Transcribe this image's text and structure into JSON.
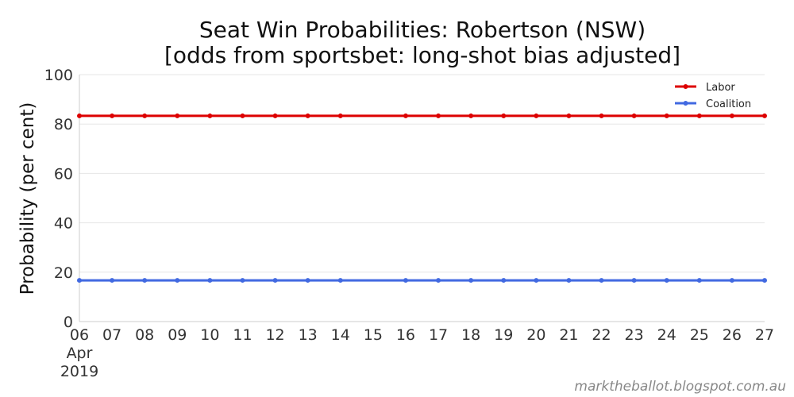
{
  "chart_data": {
    "type": "line",
    "title_line1": "Seat Win Probabilities: Robertson (NSW)",
    "title_line2": "[odds from sportsbet: long-shot bias adjusted]",
    "xlabel": "",
    "ylabel": "Probability (per cent)",
    "x": [
      "2019-04-06",
      "2019-04-07",
      "2019-04-08",
      "2019-04-09",
      "2019-04-10",
      "2019-04-11",
      "2019-04-12",
      "2019-04-13",
      "2019-04-14",
      "2019-04-16",
      "2019-04-17",
      "2019-04-18",
      "2019-04-19",
      "2019-04-20",
      "2019-04-21",
      "2019-04-22",
      "2019-04-23",
      "2019-04-24",
      "2019-04-25",
      "2019-04-26",
      "2019-04-27"
    ],
    "xlim": [
      "2019-04-06",
      "2019-04-27"
    ],
    "x_ticks": [
      "06",
      "07",
      "08",
      "09",
      "10",
      "11",
      "12",
      "13",
      "14",
      "15",
      "16",
      "17",
      "18",
      "19",
      "20",
      "21",
      "22",
      "23",
      "24",
      "25",
      "26",
      "27"
    ],
    "x_first_tick_extra": [
      "Apr",
      "2019"
    ],
    "ylim": [
      0,
      100
    ],
    "y_ticks": [
      0,
      20,
      40,
      60,
      80,
      100
    ],
    "grid": true,
    "legend_position": "top-right",
    "series": [
      {
        "name": "Labor",
        "color": "#dd0000",
        "values": [
          83.3,
          83.3,
          83.3,
          83.3,
          83.3,
          83.3,
          83.3,
          83.3,
          83.3,
          83.3,
          83.3,
          83.3,
          83.3,
          83.3,
          83.3,
          83.3,
          83.3,
          83.3,
          83.3,
          83.3,
          83.3
        ]
      },
      {
        "name": "Coalition",
        "color": "#4169e1",
        "values": [
          16.7,
          16.7,
          16.7,
          16.7,
          16.7,
          16.7,
          16.7,
          16.7,
          16.7,
          16.7,
          16.7,
          16.7,
          16.7,
          16.7,
          16.7,
          16.7,
          16.7,
          16.7,
          16.7,
          16.7,
          16.7
        ]
      }
    ]
  },
  "credit": "marktheballot.blogspot.com.au"
}
